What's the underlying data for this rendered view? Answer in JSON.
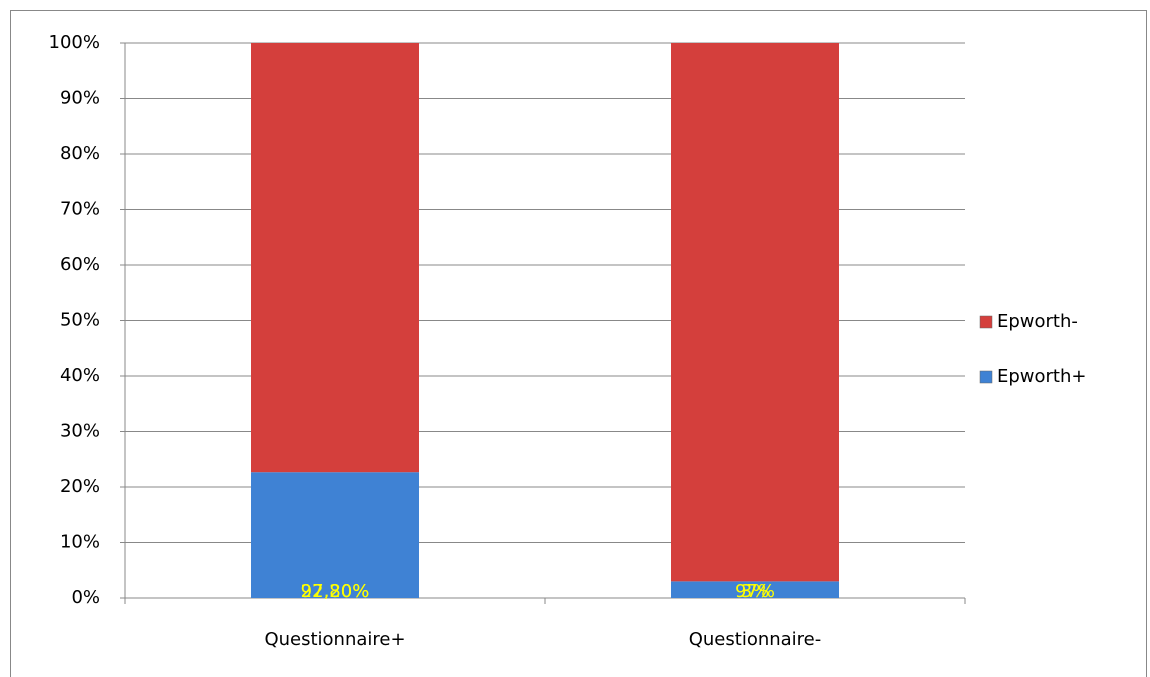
{
  "chart_data": {
    "type": "bar",
    "stacked": "percent",
    "categories": [
      "Questionnaire+",
      "Questionnaire-"
    ],
    "series": [
      {
        "name": "Epworth+",
        "color": "#3f82d4",
        "values": [
          27.2,
          3
        ],
        "value_labels": [
          "27,20%",
          "3%"
        ]
      },
      {
        "name": "Epworth-",
        "color": "#d43f3c",
        "values": [
          92.8,
          97
        ],
        "value_labels": [
          "92,80%",
          "97%"
        ]
      }
    ],
    "ylim": [
      0,
      100
    ],
    "yticks": [
      {
        "value": 0,
        "label": "0%"
      },
      {
        "value": 10,
        "label": "10%"
      },
      {
        "value": 20,
        "label": "20%"
      },
      {
        "value": 30,
        "label": "30%"
      },
      {
        "value": 40,
        "label": "40%"
      },
      {
        "value": 50,
        "label": "50%"
      },
      {
        "value": 60,
        "label": "60%"
      },
      {
        "value": 70,
        "label": "70%"
      },
      {
        "value": 80,
        "label": "80%"
      },
      {
        "value": 90,
        "label": "90%"
      },
      {
        "value": 100,
        "label": "100%"
      }
    ],
    "grid": true,
    "legend": "right",
    "label_color": "#ffff00"
  }
}
